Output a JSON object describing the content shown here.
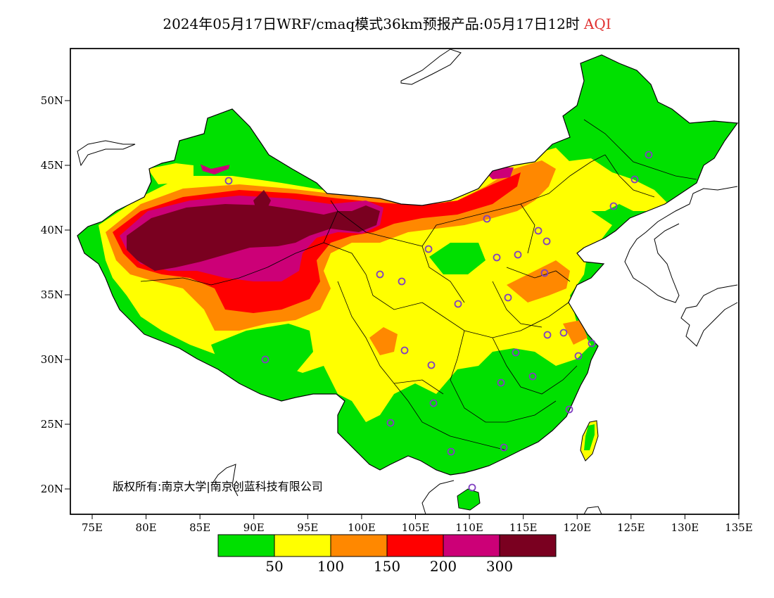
{
  "title": {
    "main": "2024年05月17日WRF/cmaq模式36km预报产品:05月17日12时",
    "variable": "AQI"
  },
  "map": {
    "lon_labels": [
      "75E",
      "80E",
      "85E",
      "90E",
      "95E",
      "100E",
      "105E",
      "110E",
      "115E",
      "120E",
      "125E",
      "130E",
      "135E"
    ],
    "lat_labels": [
      "50N",
      "45N",
      "40N",
      "35N",
      "30N",
      "25N",
      "20N"
    ],
    "copyright": "版权所有:南京大学|南京创蓝科技有限公司"
  },
  "legend": {
    "colors": [
      "#00e000",
      "#ffff00",
      "#ff8800",
      "#ff0000",
      "#cc0077",
      "#7a0020"
    ],
    "labels": [
      "50",
      "100",
      "150",
      "200",
      "300"
    ]
  },
  "colors": {
    "green": "#00e000",
    "yellow": "#ffff00",
    "orange": "#ff8800",
    "red": "#ff0000",
    "magenta": "#cc0077",
    "maroon": "#7a0020",
    "station": "#8040c0"
  },
  "stations_count_note": ""
}
